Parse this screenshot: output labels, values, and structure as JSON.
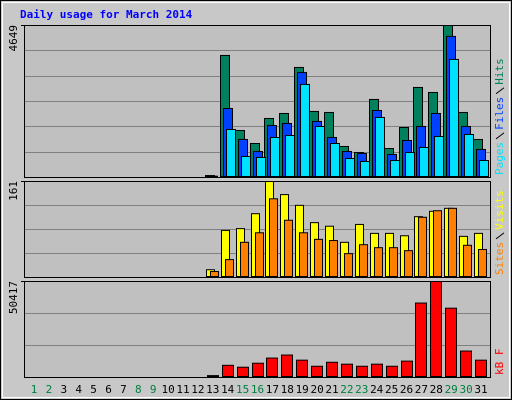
{
  "chart_data": [
    {
      "type": "bar",
      "title": "Daily usage for March 2014",
      "categories": [
        1,
        2,
        3,
        4,
        5,
        6,
        7,
        8,
        9,
        10,
        11,
        12,
        13,
        14,
        15,
        16,
        17,
        18,
        19,
        20,
        21,
        22,
        23,
        24,
        25,
        26,
        27,
        28,
        29,
        30,
        31
      ],
      "category_colors": [
        "#008040",
        "#008040",
        "#000000",
        "#000000",
        "#000000",
        "#000000",
        "#000000",
        "#008040",
        "#008040",
        "#000000",
        "#000000",
        "#000000",
        "#000000",
        "#000000",
        "#008040",
        "#008040",
        "#000000",
        "#000000",
        "#000000",
        "#000000",
        "#000000",
        "#008040",
        "#008040",
        "#000000",
        "#000000",
        "#000000",
        "#000000",
        "#000000",
        "#008040",
        "#008040",
        "#000000"
      ],
      "series": [
        {
          "name": "Hits",
          "color": "#00805c",
          "values": [
            0,
            0,
            0,
            0,
            0,
            0,
            0,
            0,
            0,
            0,
            0,
            0,
            60,
            3733,
            1438,
            1040,
            1805,
            1958,
            3366,
            2020,
            1989,
            949,
            765,
            2387,
            887,
            1530,
            2754,
            2601,
            4649,
            1989,
            1163
          ]
        },
        {
          "name": "Files",
          "color": "#0040ff",
          "values": [
            0,
            0,
            0,
            0,
            0,
            0,
            0,
            0,
            0,
            0,
            0,
            0,
            40,
            2111,
            1163,
            796,
            1591,
            1652,
            3213,
            1714,
            1224,
            796,
            734,
            2050,
            704,
            1132,
            1561,
            1958,
            4315,
            1561,
            857
          ]
        },
        {
          "name": "Pages",
          "color": "#00e0ff",
          "values": [
            0,
            0,
            0,
            0,
            0,
            0,
            0,
            0,
            0,
            0,
            0,
            0,
            30,
            1469,
            643,
            612,
            1224,
            1285,
            2846,
            1561,
            1040,
            581,
            490,
            1836,
            520,
            765,
            918,
            1255,
            3611,
            1316,
            520
          ]
        }
      ],
      "ylim": [
        0,
        4649
      ],
      "yticks": [
        4649
      ]
    },
    {
      "type": "bar",
      "series": [
        {
          "name": "Visits",
          "color": "#ffff00",
          "values": [
            0,
            0,
            0,
            0,
            0,
            0,
            0,
            0,
            0,
            0,
            0,
            0,
            13,
            79,
            82,
            107,
            161,
            139,
            121,
            92,
            86,
            59,
            89,
            74,
            74,
            70,
            102,
            111,
            116,
            69,
            74
          ]
        },
        {
          "name": "Sites",
          "color": "#ff8000",
          "values": [
            0,
            0,
            0,
            0,
            0,
            0,
            0,
            0,
            0,
            0,
            0,
            0,
            10,
            30,
            59,
            75,
            132,
            96,
            75,
            64,
            62,
            40,
            55,
            50,
            50,
            45,
            101,
            112,
            116,
            54,
            47
          ]
        }
      ],
      "ylim": [
        0,
        161
      ],
      "yticks": [
        161
      ]
    },
    {
      "type": "bar",
      "series": [
        {
          "name": "kB F",
          "color": "#ff0000",
          "values": [
            0,
            0,
            0,
            0,
            0,
            0,
            0,
            0,
            0,
            0,
            0,
            0,
            1000,
            6400,
            5400,
            7500,
            10200,
            11800,
            9100,
            5900,
            8000,
            7000,
            5900,
            7000,
            5900,
            8600,
            39100,
            50417,
            36400,
            13900,
            9100
          ]
        }
      ],
      "ylim": [
        0,
        50417
      ],
      "yticks": [
        50417
      ]
    }
  ]
}
